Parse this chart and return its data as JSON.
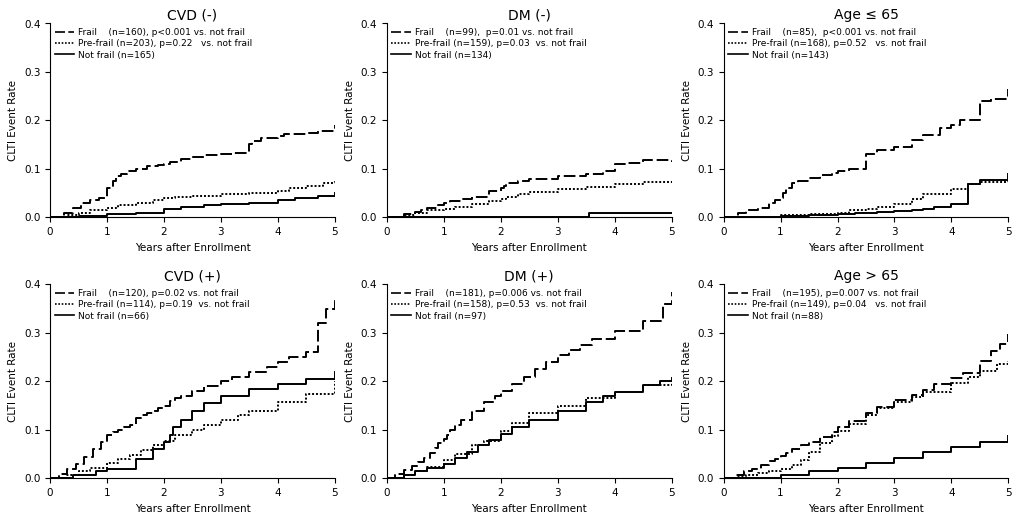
{
  "panels": [
    {
      "title": "CVD (-)",
      "legend_lines": [
        "Frail    (n=160), p<0.001 vs. not frail",
        "Pre-frail (n=203), p=0.22   vs. not frail",
        "Not frail (n=165)"
      ],
      "frail": {
        "x": [
          0,
          0.25,
          0.4,
          0.55,
          0.7,
          0.85,
          1.0,
          1.1,
          1.15,
          1.25,
          1.35,
          1.5,
          1.7,
          1.9,
          2.0,
          2.1,
          2.3,
          2.5,
          2.7,
          3.0,
          3.2,
          3.5,
          3.55,
          3.7,
          4.0,
          4.1,
          4.5,
          4.7,
          5.0
        ],
        "y": [
          0,
          0.01,
          0.02,
          0.03,
          0.035,
          0.04,
          0.06,
          0.075,
          0.085,
          0.09,
          0.095,
          0.1,
          0.105,
          0.108,
          0.11,
          0.115,
          0.12,
          0.125,
          0.128,
          0.13,
          0.132,
          0.152,
          0.158,
          0.163,
          0.168,
          0.172,
          0.175,
          0.178,
          0.19
        ]
      },
      "prefrail": {
        "x": [
          0,
          0.3,
          0.5,
          0.7,
          1.0,
          1.2,
          1.5,
          1.8,
          2.0,
          2.2,
          2.5,
          3.0,
          3.5,
          4.0,
          4.2,
          4.5,
          4.8,
          5.0
        ],
        "y": [
          0,
          0.005,
          0.01,
          0.015,
          0.02,
          0.025,
          0.03,
          0.035,
          0.04,
          0.042,
          0.045,
          0.048,
          0.05,
          0.055,
          0.06,
          0.065,
          0.07,
          0.075
        ]
      },
      "notfrail": {
        "x": [
          0,
          0.5,
          1.0,
          1.5,
          2.0,
          2.3,
          2.7,
          3.0,
          3.5,
          4.0,
          4.3,
          4.7,
          5.0
        ],
        "y": [
          0,
          0.003,
          0.008,
          0.01,
          0.018,
          0.022,
          0.025,
          0.028,
          0.03,
          0.035,
          0.04,
          0.045,
          0.05
        ]
      }
    },
    {
      "title": "DM (-)",
      "legend_lines": [
        "Frail    (n=99),  p=0.01 vs. not frail",
        "Pre-frail (n=159), p=0.03  vs. not frail",
        "Not frail (n=134)"
      ],
      "frail": {
        "x": [
          0,
          0.3,
          0.5,
          0.6,
          0.7,
          0.9,
          1.0,
          1.1,
          1.3,
          1.5,
          1.8,
          2.0,
          2.05,
          2.1,
          2.3,
          2.5,
          3.0,
          3.5,
          3.8,
          4.0,
          4.2,
          4.5,
          5.0
        ],
        "y": [
          0,
          0.008,
          0.012,
          0.016,
          0.02,
          0.025,
          0.03,
          0.033,
          0.037,
          0.042,
          0.055,
          0.06,
          0.065,
          0.07,
          0.075,
          0.08,
          0.085,
          0.09,
          0.095,
          0.11,
          0.113,
          0.118,
          0.115
        ]
      },
      "prefrail": {
        "x": [
          0,
          0.3,
          0.5,
          0.7,
          1.0,
          1.2,
          1.5,
          1.8,
          2.0,
          2.1,
          2.3,
          2.5,
          3.0,
          3.5,
          4.0,
          4.5,
          5.0
        ],
        "y": [
          0,
          0.005,
          0.01,
          0.015,
          0.018,
          0.022,
          0.028,
          0.033,
          0.038,
          0.042,
          0.048,
          0.052,
          0.058,
          0.063,
          0.068,
          0.072,
          0.075
        ]
      },
      "notfrail": {
        "x": [
          0,
          0.5,
          1.0,
          1.5,
          2.0,
          3.5,
          3.55,
          4.0,
          5.0
        ],
        "y": [
          0,
          0.0,
          0.0,
          0.0,
          0.0,
          0.0,
          0.01,
          0.01,
          0.01
        ]
      }
    },
    {
      "title": "Age ≤ 65",
      "legend_lines": [
        "Frail    (n=85),  p<0.001 vs. not frail",
        "Pre-frail (n=168), p=0.52   vs. not frail",
        "Not frail (n=143)"
      ],
      "frail": {
        "x": [
          0,
          0.25,
          0.4,
          0.6,
          0.8,
          0.9,
          1.0,
          1.05,
          1.1,
          1.2,
          1.3,
          1.5,
          1.7,
          1.9,
          2.0,
          2.2,
          2.5,
          2.7,
          3.0,
          3.3,
          3.5,
          3.8,
          4.0,
          4.15,
          4.5,
          4.7,
          5.0
        ],
        "y": [
          0,
          0.01,
          0.015,
          0.02,
          0.03,
          0.035,
          0.04,
          0.05,
          0.06,
          0.07,
          0.075,
          0.082,
          0.088,
          0.092,
          0.096,
          0.1,
          0.13,
          0.14,
          0.145,
          0.16,
          0.17,
          0.185,
          0.19,
          0.2,
          0.24,
          0.245,
          0.265
        ]
      },
      "prefrail": {
        "x": [
          0,
          0.5,
          1.0,
          1.5,
          2.0,
          2.2,
          2.5,
          2.7,
          3.0,
          3.3,
          3.5,
          4.0,
          4.3,
          4.5,
          5.0
        ],
        "y": [
          0,
          0.0,
          0.005,
          0.007,
          0.01,
          0.015,
          0.018,
          0.022,
          0.028,
          0.038,
          0.048,
          0.058,
          0.068,
          0.074,
          0.088
        ]
      },
      "notfrail": {
        "x": [
          0,
          0.5,
          1.0,
          1.5,
          2.0,
          2.3,
          2.7,
          3.0,
          3.3,
          3.5,
          3.7,
          4.0,
          4.3,
          4.5,
          5.0
        ],
        "y": [
          0,
          0.0,
          0.003,
          0.005,
          0.008,
          0.01,
          0.012,
          0.013,
          0.015,
          0.018,
          0.022,
          0.028,
          0.068,
          0.078,
          0.09
        ]
      }
    },
    {
      "title": "CVD (+)",
      "legend_lines": [
        "Frail    (n=120), p=0.02 vs. not frail",
        "Pre-frail (n=114), p=0.19  vs. not frail",
        "Not frail (n=66)"
      ],
      "frail": {
        "x": [
          0,
          0.15,
          0.3,
          0.45,
          0.6,
          0.75,
          0.9,
          1.0,
          1.1,
          1.2,
          1.3,
          1.4,
          1.5,
          1.6,
          1.7,
          1.8,
          1.9,
          2.0,
          2.1,
          2.2,
          2.3,
          2.5,
          2.7,
          3.0,
          3.2,
          3.5,
          3.8,
          4.0,
          4.2,
          4.5,
          4.7,
          4.85,
          5.0
        ],
        "y": [
          0,
          0.01,
          0.02,
          0.03,
          0.045,
          0.06,
          0.075,
          0.09,
          0.095,
          0.1,
          0.105,
          0.11,
          0.125,
          0.13,
          0.135,
          0.14,
          0.145,
          0.15,
          0.16,
          0.165,
          0.17,
          0.18,
          0.19,
          0.2,
          0.21,
          0.22,
          0.23,
          0.24,
          0.25,
          0.26,
          0.32,
          0.35,
          0.375
        ]
      },
      "prefrail": {
        "x": [
          0,
          0.3,
          0.5,
          0.7,
          1.0,
          1.2,
          1.4,
          1.6,
          1.8,
          2.0,
          2.2,
          2.5,
          2.7,
          3.0,
          3.3,
          3.5,
          4.0,
          4.5,
          5.0
        ],
        "y": [
          0,
          0.008,
          0.015,
          0.022,
          0.032,
          0.04,
          0.048,
          0.058,
          0.068,
          0.078,
          0.09,
          0.1,
          0.11,
          0.12,
          0.13,
          0.14,
          0.158,
          0.175,
          0.2
        ]
      },
      "notfrail": {
        "x": [
          0,
          0.4,
          0.8,
          1.0,
          1.5,
          1.8,
          2.0,
          2.1,
          2.15,
          2.3,
          2.5,
          2.7,
          3.0,
          3.5,
          4.0,
          4.5,
          5.0
        ],
        "y": [
          0,
          0.008,
          0.015,
          0.02,
          0.04,
          0.06,
          0.075,
          0.09,
          0.105,
          0.12,
          0.14,
          0.155,
          0.17,
          0.185,
          0.195,
          0.205,
          0.22
        ]
      }
    },
    {
      "title": "DM (+)",
      "legend_lines": [
        "Frail    (n=181), p=0.006 vs. not frail",
        "Pre-frail (n=158), p=0.53  vs. not frail",
        "Not frail (n=97)"
      ],
      "frail": {
        "x": [
          0,
          0.15,
          0.3,
          0.45,
          0.55,
          0.65,
          0.75,
          0.85,
          0.9,
          1.0,
          1.05,
          1.1,
          1.2,
          1.3,
          1.5,
          1.7,
          1.9,
          2.0,
          2.2,
          2.4,
          2.6,
          2.8,
          3.0,
          3.2,
          3.4,
          3.6,
          4.0,
          4.5,
          4.85,
          5.0
        ],
        "y": [
          0,
          0.01,
          0.018,
          0.026,
          0.034,
          0.042,
          0.052,
          0.062,
          0.072,
          0.082,
          0.09,
          0.1,
          0.11,
          0.12,
          0.14,
          0.158,
          0.17,
          0.18,
          0.195,
          0.21,
          0.225,
          0.24,
          0.255,
          0.265,
          0.275,
          0.288,
          0.305,
          0.325,
          0.36,
          0.385
        ]
      },
      "prefrail": {
        "x": [
          0,
          0.3,
          0.5,
          0.7,
          1.0,
          1.2,
          1.5,
          1.7,
          2.0,
          2.2,
          2.5,
          3.0,
          3.5,
          4.0,
          4.5,
          5.0
        ],
        "y": [
          0,
          0.008,
          0.016,
          0.024,
          0.038,
          0.05,
          0.068,
          0.078,
          0.098,
          0.115,
          0.135,
          0.15,
          0.165,
          0.178,
          0.192,
          0.205
        ]
      },
      "notfrail": {
        "x": [
          0,
          0.3,
          0.5,
          0.7,
          1.0,
          1.2,
          1.4,
          1.6,
          1.8,
          2.0,
          2.2,
          2.5,
          3.0,
          3.5,
          3.8,
          4.0,
          4.5,
          4.8,
          5.0
        ],
        "y": [
          0,
          0.008,
          0.015,
          0.022,
          0.03,
          0.042,
          0.055,
          0.068,
          0.08,
          0.092,
          0.105,
          0.12,
          0.14,
          0.158,
          0.17,
          0.178,
          0.192,
          0.2,
          0.208
        ]
      }
    },
    {
      "title": "Age > 65",
      "legend_lines": [
        "Frail    (n=195), p=0.007 vs. not frail",
        "Pre-frail (n=149), p=0.04   vs. not frail",
        "Not frail (n=88)"
      ],
      "frail": {
        "x": [
          0,
          0.2,
          0.35,
          0.5,
          0.65,
          0.8,
          0.9,
          1.0,
          1.1,
          1.2,
          1.35,
          1.5,
          1.7,
          1.9,
          2.0,
          2.2,
          2.5,
          2.7,
          3.0,
          3.3,
          3.5,
          3.7,
          4.0,
          4.2,
          4.5,
          4.7,
          4.85,
          5.0
        ],
        "y": [
          0,
          0.008,
          0.015,
          0.02,
          0.028,
          0.035,
          0.04,
          0.046,
          0.052,
          0.06,
          0.068,
          0.076,
          0.085,
          0.095,
          0.105,
          0.118,
          0.135,
          0.148,
          0.162,
          0.172,
          0.182,
          0.195,
          0.208,
          0.218,
          0.242,
          0.262,
          0.278,
          0.298
        ]
      },
      "prefrail": {
        "x": [
          0,
          0.25,
          0.4,
          0.6,
          0.8,
          1.0,
          1.2,
          1.35,
          1.5,
          1.7,
          1.9,
          2.0,
          2.2,
          2.5,
          2.7,
          3.0,
          3.3,
          3.5,
          4.0,
          4.3,
          4.5,
          4.8,
          5.0
        ],
        "y": [
          0,
          0.004,
          0.008,
          0.012,
          0.016,
          0.02,
          0.028,
          0.038,
          0.055,
          0.072,
          0.088,
          0.098,
          0.112,
          0.13,
          0.145,
          0.158,
          0.168,
          0.178,
          0.196,
          0.21,
          0.222,
          0.235,
          0.242
        ]
      },
      "notfrail": {
        "x": [
          0,
          0.5,
          1.0,
          1.5,
          2.0,
          2.5,
          3.0,
          3.5,
          4.0,
          4.5,
          5.0
        ],
        "y": [
          0,
          0.0,
          0.008,
          0.015,
          0.022,
          0.032,
          0.042,
          0.055,
          0.065,
          0.075,
          0.088
        ]
      }
    }
  ],
  "ylim": [
    0,
    0.4
  ],
  "xlim": [
    0,
    5
  ],
  "xticks": [
    0,
    1,
    2,
    3,
    4,
    5
  ],
  "yticks": [
    0.0,
    0.1,
    0.2,
    0.3,
    0.4
  ],
  "xlabel": "Years after Enrollment",
  "ylabel": "CLTI Event Rate",
  "linewidth": 1.4,
  "linecolor": "black",
  "title_fontsize": 10,
  "label_fontsize": 7.5,
  "tick_fontsize": 7.5,
  "legend_fontsize": 6.5
}
